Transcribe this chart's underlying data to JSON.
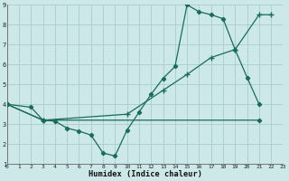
{
  "bg_color": "#cde8e8",
  "grid_color": "#aacccc",
  "line_color": "#1a6b5a",
  "xlabel": "Humidex (Indice chaleur)",
  "xlim": [
    0,
    23
  ],
  "ylim": [
    1,
    9
  ],
  "yticks": [
    1,
    2,
    3,
    4,
    5,
    6,
    7,
    8,
    9
  ],
  "xticks": [
    0,
    1,
    2,
    3,
    4,
    5,
    6,
    7,
    8,
    9,
    10,
    11,
    12,
    13,
    14,
    15,
    16,
    17,
    18,
    19,
    20,
    21,
    22,
    23
  ],
  "lines": [
    {
      "x": [
        0,
        2,
        3,
        4,
        5,
        6,
        7,
        8,
        9,
        10,
        11,
        12,
        13,
        14,
        15,
        16,
        17,
        18,
        19,
        20,
        21
      ],
      "y": [
        4.0,
        3.85,
        3.2,
        3.15,
        2.8,
        2.65,
        2.45,
        1.55,
        1.4,
        2.7,
        3.6,
        4.5,
        5.3,
        5.9,
        9.0,
        8.65,
        8.5,
        8.3,
        6.75,
        5.35,
        4.0
      ]
    },
    {
      "x": [
        0,
        3,
        21
      ],
      "y": [
        4.0,
        3.2,
        3.2
      ]
    },
    {
      "x": [
        0,
        3,
        10,
        13,
        15,
        17,
        19,
        21,
        22
      ],
      "y": [
        4.0,
        3.2,
        3.5,
        4.7,
        5.5,
        6.35,
        6.75,
        8.5,
        8.5
      ]
    }
  ]
}
